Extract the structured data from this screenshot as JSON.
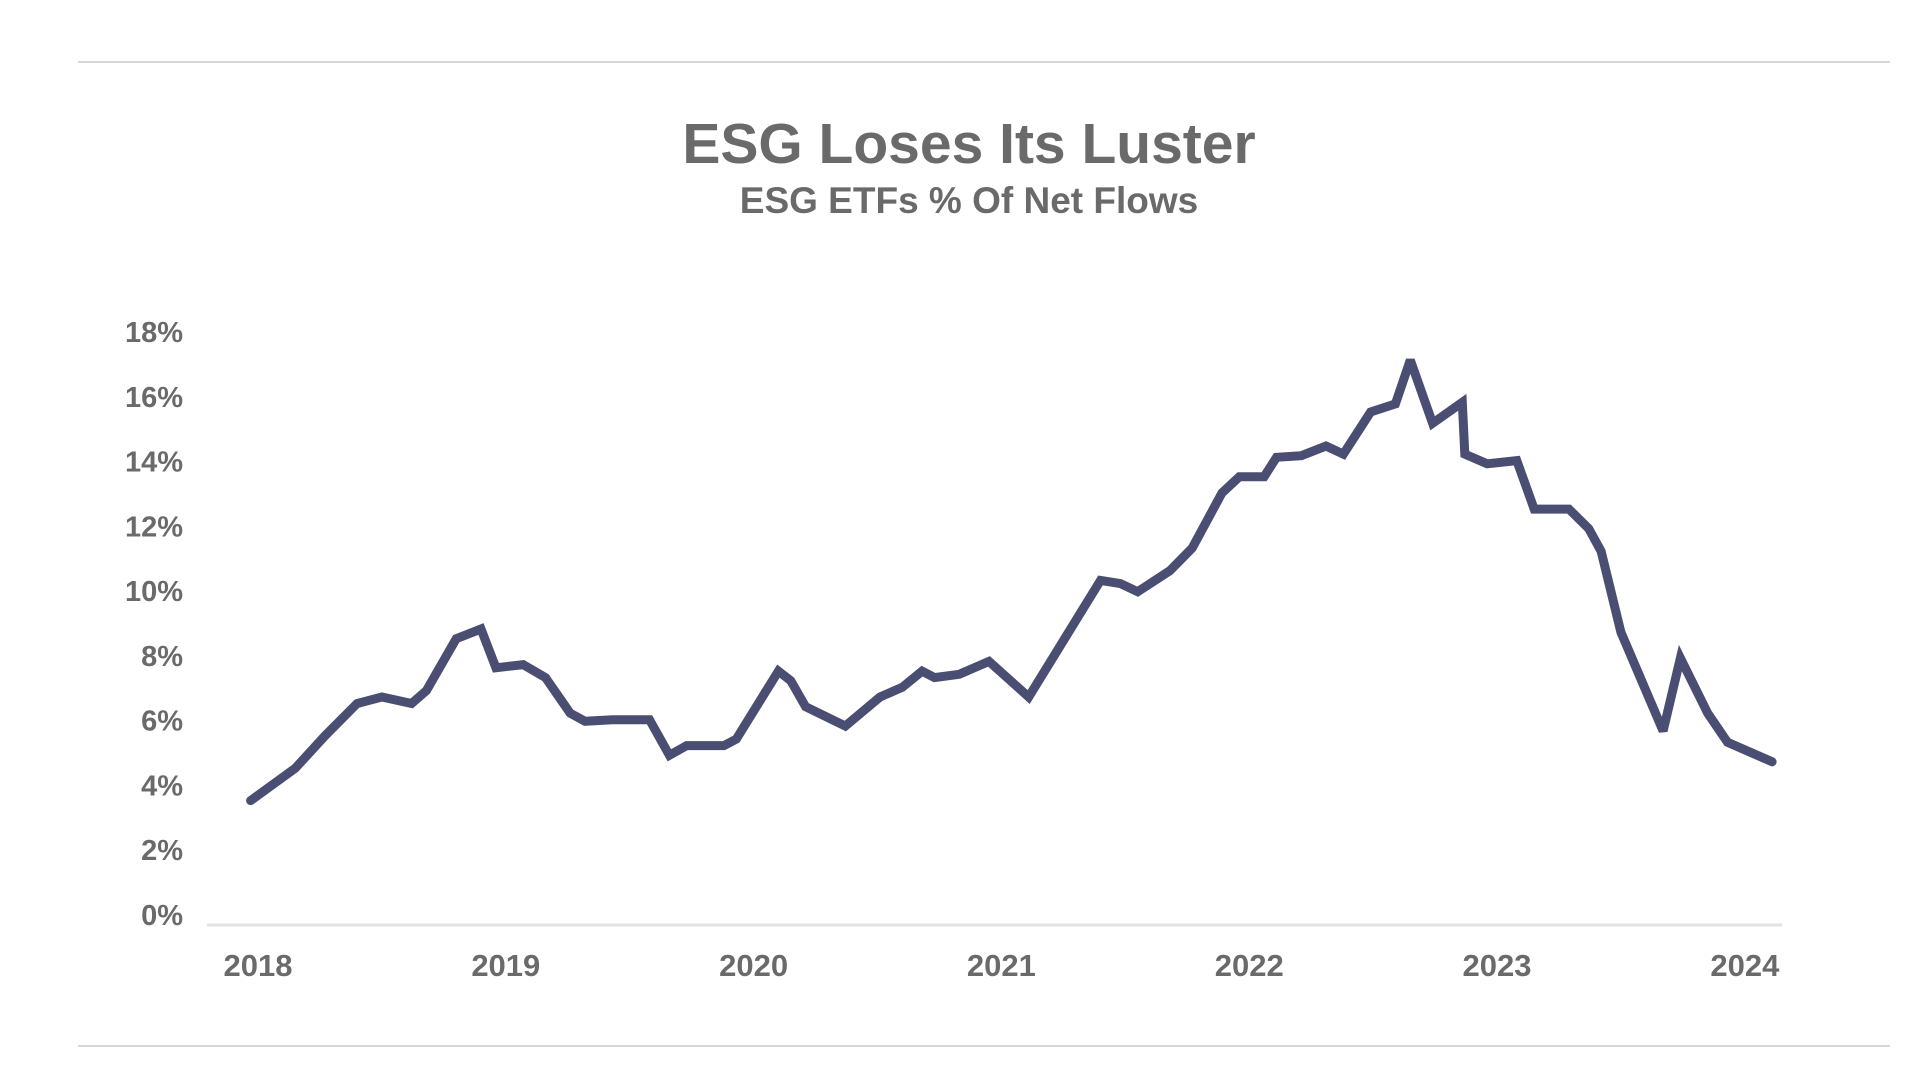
{
  "chart_data": {
    "type": "line",
    "title": "ESG Loses Its Luster",
    "subtitle": "ESG ETFs % Of Net Flows",
    "xlabel": "",
    "ylabel": "",
    "xlim": [
      2018.0,
      2024.15
    ],
    "ylim": [
      0,
      18
    ],
    "y_ticks": [
      0,
      2,
      4,
      6,
      8,
      10,
      12,
      14,
      16,
      18
    ],
    "y_tick_labels": [
      "0%",
      "2%",
      "4%",
      "6%",
      "8%",
      "10%",
      "12%",
      "14%",
      "16%",
      "18%"
    ],
    "x_ticks": [
      2018,
      2019,
      2020,
      2021,
      2022,
      2023,
      2024
    ],
    "x_tick_labels": [
      "2018",
      "2019",
      "2020",
      "2021",
      "2022",
      "2023",
      "2024"
    ],
    "grid": false,
    "legend": "none",
    "series": [
      {
        "color": "#4a4e72",
        "x": [
          2017.97,
          2018.15,
          2018.27,
          2018.4,
          2018.5,
          2018.62,
          2018.68,
          2018.8,
          2018.9,
          2018.96,
          2019.07,
          2019.16,
          2019.26,
          2019.32,
          2019.43,
          2019.58,
          2019.66,
          2019.73,
          2019.88,
          2019.93,
          2020.1,
          2020.15,
          2020.21,
          2020.37,
          2020.51,
          2020.6,
          2020.68,
          2020.73,
          2020.83,
          2020.95,
          2021.11,
          2021.4,
          2021.48,
          2021.55,
          2021.68,
          2021.77,
          2021.89,
          2021.96,
          2022.06,
          2022.11,
          2022.21,
          2022.31,
          2022.38,
          2022.49,
          2022.59,
          2022.65,
          2022.74,
          2022.86,
          2022.87,
          2022.96,
          2023.08,
          2023.15,
          2023.29,
          2023.37,
          2023.42,
          2023.5,
          2023.67,
          2023.74,
          2023.85,
          2023.93,
          2024.11
        ],
        "y": [
          3.5,
          4.5,
          5.5,
          6.5,
          6.7,
          6.5,
          6.9,
          8.5,
          8.8,
          7.6,
          7.7,
          7.3,
          6.2,
          5.95,
          6.0,
          6.0,
          4.9,
          5.2,
          5.2,
          5.4,
          7.5,
          7.2,
          6.4,
          5.8,
          6.7,
          7.0,
          7.5,
          7.3,
          7.4,
          7.8,
          6.7,
          10.3,
          10.2,
          9.95,
          10.6,
          11.3,
          13.0,
          13.5,
          13.5,
          14.1,
          14.15,
          14.45,
          14.2,
          15.5,
          15.75,
          17.1,
          15.15,
          15.8,
          14.2,
          13.9,
          14.0,
          12.5,
          12.5,
          11.9,
          11.2,
          8.7,
          5.65,
          7.9,
          6.2,
          5.3,
          4.7
        ]
      }
    ]
  }
}
